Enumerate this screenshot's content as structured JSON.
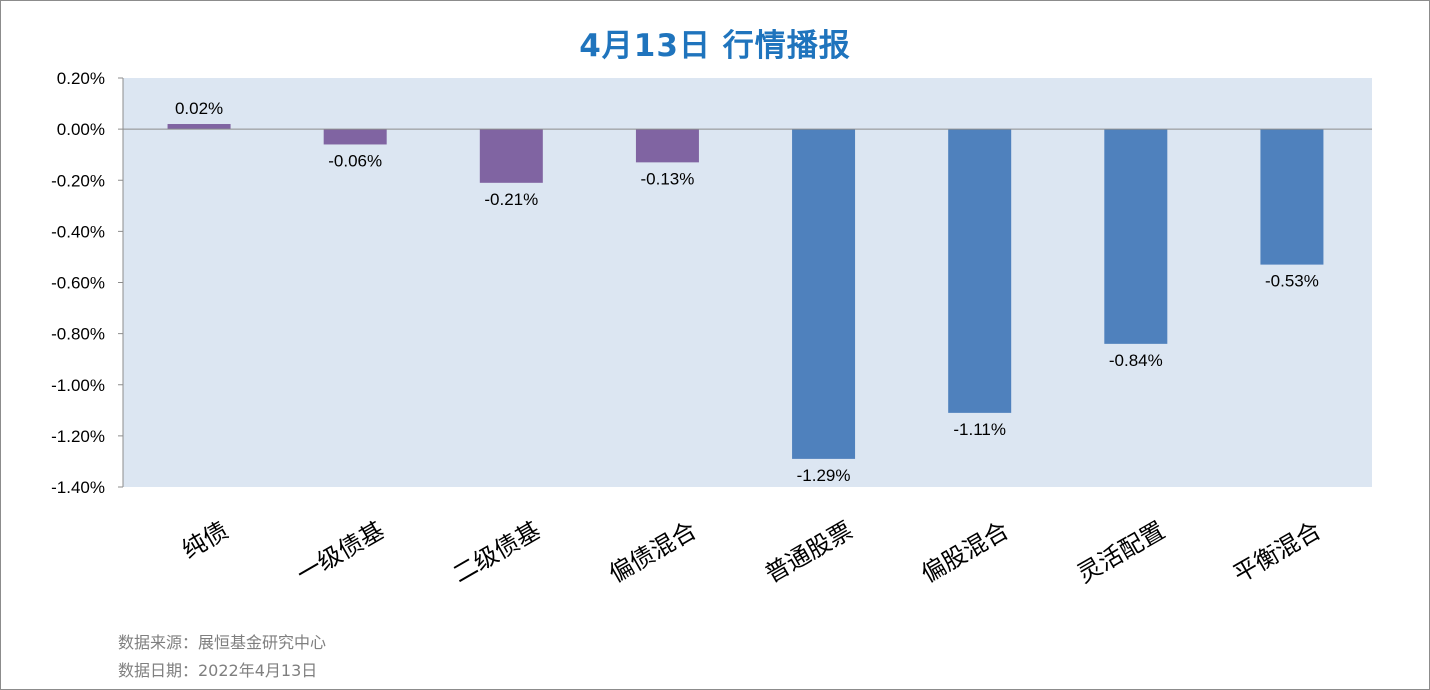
{
  "chart_data": {
    "type": "bar",
    "title": "4月13日  行情播报",
    "categories": [
      "纯债",
      "一级债基",
      "二级债基",
      "偏债混合",
      "普通股票",
      "偏股混合",
      "灵活配置",
      "平衡混合"
    ],
    "values": [
      0.02,
      -0.06,
      -0.21,
      -0.13,
      -1.29,
      -1.11,
      -0.84,
      -0.53
    ],
    "data_labels": [
      "0.02%",
      "-0.06%",
      "-0.21%",
      "-0.13%",
      "-1.29%",
      "-1.11%",
      "-0.84%",
      "-0.53%"
    ],
    "bar_colors": [
      "#8064a2",
      "#8064a2",
      "#8064a2",
      "#8064a2",
      "#4f81bd",
      "#4f81bd",
      "#4f81bd",
      "#4f81bd"
    ],
    "ylim": [
      -1.4,
      0.2
    ],
    "yticks": [
      0.2,
      0.0,
      -0.2,
      -0.4,
      -0.6,
      -0.8,
      -1.0,
      -1.2,
      -1.4
    ],
    "ytick_labels": [
      "0.20%",
      "0.00%",
      "-0.20%",
      "-0.40%",
      "-0.60%",
      "-0.80%",
      "-1.00%",
      "-1.20%",
      "-1.40%"
    ],
    "plot_background": "#dce6f2",
    "grid": false,
    "xlabel": "",
    "ylabel": ""
  },
  "footer": {
    "source": "数据来源：展恒基金研究中心",
    "date": "数据日期：2022年4月13日"
  }
}
